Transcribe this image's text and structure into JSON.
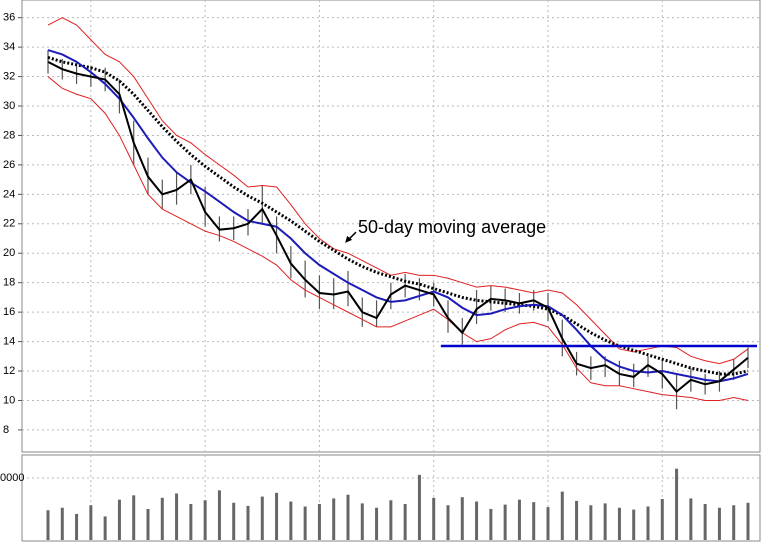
{
  "chart_data": {
    "type": "stock",
    "ylim": [
      6.5,
      37.2
    ],
    "yticks": [
      8,
      10,
      12,
      14,
      16,
      18,
      20,
      22,
      24,
      26,
      28,
      30,
      32,
      34,
      36
    ],
    "grid": true,
    "categories": [
      null,
      null,
      null,
      null,
      null,
      null,
      null,
      null,
      null,
      null,
      null,
      null,
      null,
      null,
      null,
      null,
      null,
      null,
      null,
      null,
      null,
      null,
      null,
      null,
      null,
      null,
      null,
      null,
      null,
      null,
      null,
      null,
      null,
      null,
      null,
      null,
      null,
      null,
      null,
      null,
      null,
      null,
      null,
      null,
      null,
      null,
      null,
      null,
      null,
      null
    ],
    "high": [
      33.8,
      33.2,
      32.8,
      32.7,
      32.6,
      31.8,
      29,
      26.5,
      25,
      25.5,
      26,
      24.5,
      22.5,
      22.5,
      23,
      24.6,
      22.5,
      20.5,
      19.5,
      18.5,
      18.3,
      18.8,
      17,
      16.8,
      18,
      18.6,
      18.3,
      18,
      16.8,
      15.6,
      17.5,
      17.8,
      17.6,
      17.3,
      17.5,
      17.3,
      15.5,
      13.3,
      13,
      13,
      12.7,
      12.5,
      13,
      12.8,
      11.8,
      12.2,
      11.8,
      12,
      12.8,
      13.6
    ],
    "low": [
      32.2,
      31.8,
      31.5,
      31.3,
      31,
      29.5,
      26,
      24,
      23,
      23.3,
      24,
      21.8,
      20.8,
      20.9,
      21.2,
      22,
      20,
      18.3,
      17,
      16.2,
      16.2,
      16.4,
      15,
      15,
      16.2,
      17,
      16.8,
      16.4,
      14.6,
      13.8,
      15.2,
      16.1,
      16,
      15.9,
      16.1,
      15.4,
      13,
      11.7,
      11.4,
      11.6,
      11,
      10.9,
      11.6,
      10.8,
      9.4,
      10.6,
      10.4,
      10.6,
      11.4,
      12.2
    ],
    "bar_color": "#555555",
    "series": [
      {
        "color": "#e02020",
        "dash": false,
        "values": [
          35.5,
          36,
          35.5,
          34.5,
          33.5,
          33,
          32,
          30.5,
          29,
          28,
          27.5,
          26.7,
          26,
          25.3,
          24.5,
          24.6,
          24.5,
          23.3,
          22,
          21,
          20.3,
          20,
          19.5,
          19,
          18.5,
          18.7,
          18.5,
          18.5,
          18.3,
          18,
          17.7,
          17.8,
          17.7,
          17.5,
          17.3,
          17.5,
          17.3,
          16.5,
          15.5,
          14.5,
          13.5,
          13.3,
          13.5,
          13.7,
          13.6,
          13,
          12.7,
          12.5,
          12.8,
          13.5
        ]
      },
      {
        "color": "#e02020",
        "dash": false,
        "values": [
          32,
          31.2,
          30.8,
          30.5,
          29.5,
          28,
          26,
          24,
          23,
          22.5,
          22,
          21.5,
          21.2,
          20.8,
          20.3,
          19.8,
          19.2,
          18.2,
          17.5,
          17,
          16.5,
          16,
          15.5,
          15,
          15,
          15.4,
          15.8,
          16.2,
          15.5,
          14.6,
          14,
          14.2,
          14.8,
          15.2,
          15.3,
          15,
          13.8,
          12.2,
          11.2,
          11,
          11,
          10.8,
          10.6,
          10.4,
          10.3,
          10.2,
          10,
          10,
          10.2,
          10
        ]
      },
      {
        "color": "#000000",
        "dash": true,
        "values": [
          33.3,
          33,
          32.8,
          32.6,
          32.3,
          31.7,
          30.8,
          29.7,
          28.6,
          27.6,
          26.7,
          25.9,
          25.2,
          24.5,
          23.9,
          23.4,
          22.8,
          22.2,
          21.5,
          20.8,
          20.2,
          19.6,
          19.1,
          18.7,
          18.4,
          18.1,
          17.9,
          17.6,
          17.3,
          17,
          16.8,
          16.7,
          16.6,
          16.5,
          16.4,
          16.2,
          15.8,
          15.2,
          14.6,
          14.1,
          13.7,
          13.4,
          13.1,
          12.8,
          12.5,
          12.2,
          12,
          11.8,
          11.8,
          12
        ]
      },
      {
        "color": "#1c1cb8",
        "dash": false,
        "values": [
          33.8,
          33.5,
          33,
          32.3,
          31.5,
          30.5,
          29.2,
          27.8,
          26.5,
          25.5,
          24.8,
          24.2,
          23.5,
          22.8,
          22.2,
          22,
          21.8,
          21,
          20,
          19.2,
          18.6,
          18,
          17.5,
          17,
          16.7,
          16.8,
          17.1,
          17.4,
          17,
          16.3,
          15.8,
          15.9,
          16.2,
          16.4,
          16.5,
          16.4,
          15.8,
          14.8,
          13.7,
          12.8,
          12.3,
          12,
          11.9,
          12,
          11.8,
          11.6,
          11.4,
          11.3,
          11.5,
          11.8
        ]
      },
      {
        "color": "#000000",
        "dash": false,
        "values": [
          33,
          32.5,
          32.2,
          32,
          31.8,
          30.8,
          27.5,
          25.2,
          24,
          24.3,
          25,
          22.8,
          21.6,
          21.7,
          22,
          23,
          21.2,
          19.3,
          18.2,
          17.3,
          17.2,
          17.4,
          16,
          15.6,
          17.2,
          17.8,
          17.5,
          17.2,
          15.6,
          14.6,
          16.2,
          16.9,
          16.8,
          16.6,
          16.8,
          16.3,
          14.2,
          12.5,
          12.2,
          12.4,
          11.8,
          11.6,
          12.4,
          11.8,
          10.6,
          11.4,
          11.1,
          11.3,
          12.1,
          12.9
        ]
      }
    ],
    "hlines": [
      {
        "value": 13.7,
        "from": 27.5,
        "color": "#0000cc"
      }
    ],
    "annotations": [
      {
        "text": "50-day moving average",
        "at": [
          21.7,
          21.7
        ],
        "arrow_to": [
          20.8,
          20.7
        ]
      }
    ],
    "volume": {
      "ylim": [
        0,
        13700
      ],
      "yticks": [
        {
          "value": 10000,
          "label": "0000"
        }
      ],
      "color": "#666666",
      "values": [
        4800,
        5200,
        4200,
        5600,
        3800,
        6500,
        7200,
        5000,
        6800,
        7500,
        5800,
        6400,
        8000,
        6000,
        5500,
        7000,
        7600,
        6200,
        5400,
        5800,
        6700,
        7300,
        5900,
        5200,
        6400,
        5800,
        10500,
        6800,
        5600,
        6900,
        6200,
        5000,
        5700,
        6500,
        6100,
        5300,
        7800,
        6300,
        5600,
        5900,
        5200,
        4900,
        5400,
        6600,
        11500,
        6700,
        5800,
        5200,
        5600,
        6000
      ]
    }
  }
}
